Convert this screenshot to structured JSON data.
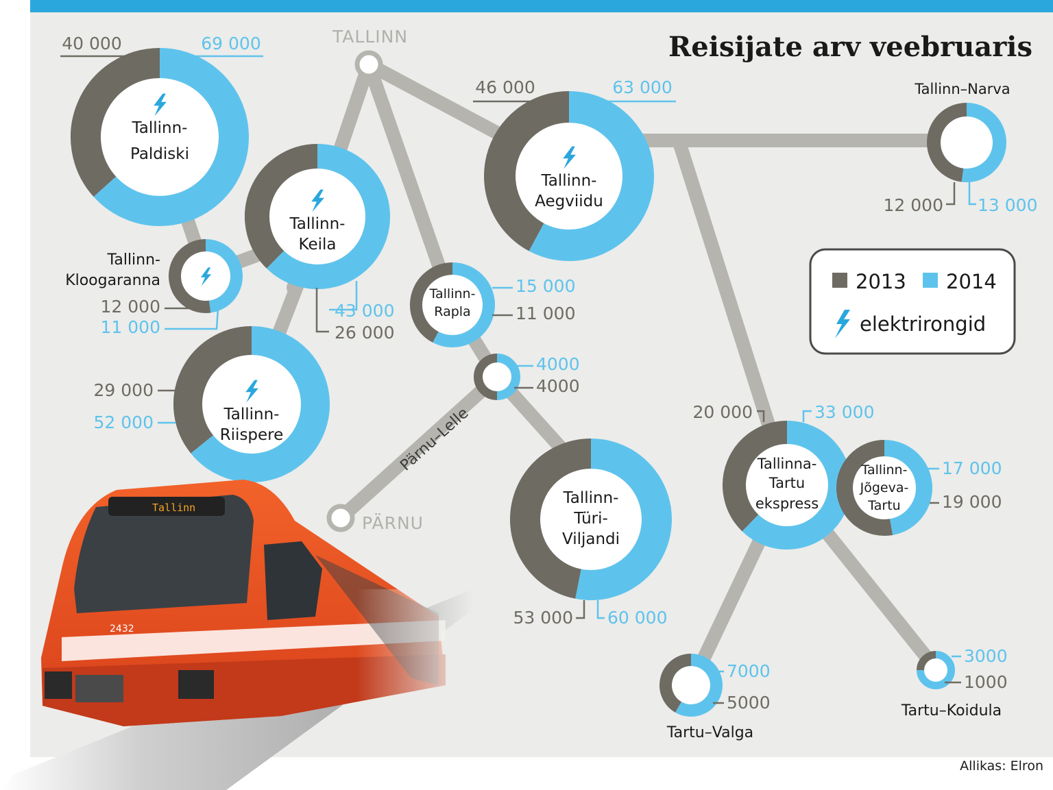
{
  "title": "Reisijate arv veebruaris",
  "source": "Allikas: Elron",
  "colors": {
    "y2013": "#6e6b62",
    "y2014": "#5ec3ec",
    "background": "#ececea",
    "track": "#b5b4ae",
    "topbar": "#2aa7dc"
  },
  "legend": {
    "y2013": "2013",
    "y2014": "2014",
    "electric": "elektrirongid"
  },
  "cities": {
    "tallinn": "TALLINN",
    "parnu": "PÄRNU"
  },
  "route_label": "Pärnu–Lelle",
  "train_number": "2432",
  "train_sign": "Tallinn",
  "chart_data": {
    "type": "pie",
    "title": "Reisijate arv veebruaris",
    "series": [
      {
        "name": "2013"
      },
      {
        "name": "2014"
      }
    ],
    "routes": [
      {
        "name_lines": [
          "Tallinn-",
          "Paldiski"
        ],
        "electric": true,
        "v2013": 40000,
        "v2014": 69000,
        "label2013": "40 000",
        "label2014": "69 000"
      },
      {
        "name_lines": [
          "Tallinn-",
          "Keila"
        ],
        "electric": true,
        "v2013": 26000,
        "v2014": 43000,
        "label2013": "26 000",
        "label2014": "43 000"
      },
      {
        "name_lines": [
          "Tallinn-",
          "Kloogaranna"
        ],
        "electric": true,
        "v2013": 12000,
        "v2014": 11000,
        "label2013": "12 000",
        "label2014": "11 000"
      },
      {
        "name_lines": [
          "Tallinn-",
          "Riispere"
        ],
        "electric": true,
        "v2013": 29000,
        "v2014": 52000,
        "label2013": "29 000",
        "label2014": "52 000"
      },
      {
        "name_lines": [
          "Tallinn-",
          "Aegviidu"
        ],
        "electric": true,
        "v2013": 46000,
        "v2014": 63000,
        "label2013": "46 000",
        "label2014": "63 000"
      },
      {
        "name_lines": [
          "Tallinn-",
          "Rapla"
        ],
        "electric": false,
        "v2013": 11000,
        "v2014": 15000,
        "label2013": "11 000",
        "label2014": "15 000"
      },
      {
        "name_lines": [
          "Pärnu–Lelle"
        ],
        "electric": false,
        "v2013": 4000,
        "v2014": 4000,
        "label2013": "4000",
        "label2014": "4000"
      },
      {
        "name_lines": [
          "Tallinn-",
          "Türi-",
          "Viljandi"
        ],
        "electric": false,
        "v2013": 53000,
        "v2014": 60000,
        "label2013": "53 000",
        "label2014": "60 000"
      },
      {
        "name_lines": [
          "Tallinn–Narva"
        ],
        "electric": false,
        "v2013": 12000,
        "v2014": 13000,
        "label2013": "12 000",
        "label2014": "13 000"
      },
      {
        "name_lines": [
          "Tallinna-",
          "Tartu",
          "ekspress"
        ],
        "electric": false,
        "v2013": 20000,
        "v2014": 33000,
        "label2013": "20 000",
        "label2014": "33 000"
      },
      {
        "name_lines": [
          "Tallinn-",
          "Jõgeva-",
          "Tartu"
        ],
        "electric": false,
        "v2013": 19000,
        "v2014": 17000,
        "label2013": "19 000",
        "label2014": "17 000"
      },
      {
        "name_lines": [
          "Tartu–Valga"
        ],
        "electric": false,
        "v2013": 5000,
        "v2014": 7000,
        "label2013": "5000",
        "label2014": "7000"
      },
      {
        "name_lines": [
          "Tartu–Koidula"
        ],
        "electric": false,
        "v2013": 1000,
        "v2014": 3000,
        "label2013": "1000",
        "label2014": "3000"
      }
    ]
  }
}
